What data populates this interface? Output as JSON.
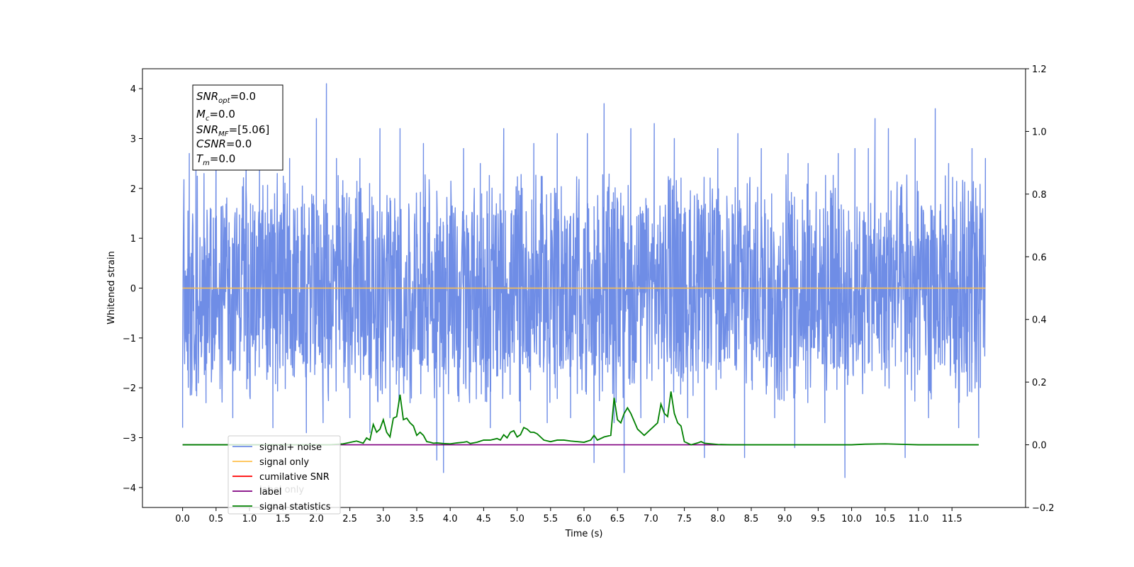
{
  "chart_data": {
    "type": "line",
    "xlabel": "Time (s)",
    "ylabel": "Whitened strain",
    "xlim": [
      -0.6,
      12.6
    ],
    "ylim": [
      -4.4,
      4.4
    ],
    "y2lim": [
      -0.2,
      1.2
    ],
    "grid": false,
    "x_ticks": [
      "0.0",
      "0.5",
      "1.0",
      "1.5",
      "2.0",
      "2.5",
      "3.0",
      "3.5",
      "4.0",
      "4.5",
      "5.0",
      "5.5",
      "6.0",
      "6.5",
      "7.0",
      "7.5",
      "8.0",
      "8.5",
      "9.0",
      "9.5",
      "10.0",
      "10.5",
      "11.0",
      "11.5"
    ],
    "y_ticks": [
      "4",
      "3",
      "2",
      "1",
      "0",
      "−1",
      "−2",
      "−3",
      "−4"
    ],
    "y2_ticks": [
      "1.2",
      "1.0",
      "0.8",
      "0.6",
      "0.4",
      "0.2",
      "0.0",
      "−0.2"
    ],
    "info_box": {
      "snr_opt": "=0.0",
      "mc": "=0.0",
      "snr_mf": "=[5.06]",
      "csnr": "=0.0",
      "tm": "=0.0"
    },
    "legend": {
      "location": "lower left",
      "entries": [
        {
          "label": "signal+ noise",
          "color": "#6f8de6"
        },
        {
          "label": "signal only",
          "color": "#ffc04d"
        },
        {
          "label": "cumilative SNR",
          "color": "#ff0000"
        },
        {
          "label": "label",
          "color": "#800080"
        },
        {
          "label": "signal statistics",
          "color": "#008000"
        }
      ],
      "hidden_text": [
        "label only"
      ]
    },
    "series": [
      {
        "name": "signal+ noise",
        "axis": "left",
        "color": "#6f8de6",
        "x_start": 0.0,
        "x_end": 12.0,
        "typical_range": [
          -1.7,
          1.7
        ],
        "spikes": [
          [
            0.0,
            -2.8
          ],
          [
            0.1,
            2.7
          ],
          [
            0.2,
            3.1
          ],
          [
            0.35,
            -2.3
          ],
          [
            0.5,
            3.0
          ],
          [
            0.75,
            -2.6
          ],
          [
            0.95,
            2.6
          ],
          [
            1.15,
            2.8
          ],
          [
            1.35,
            -2.8
          ],
          [
            1.6,
            2.6
          ],
          [
            1.85,
            -2.9
          ],
          [
            2.0,
            3.4
          ],
          [
            2.1,
            -2.7
          ],
          [
            2.15,
            4.1
          ],
          [
            2.3,
            2.6
          ],
          [
            2.5,
            -2.6
          ],
          [
            2.65,
            2.6
          ],
          [
            2.8,
            -2.9
          ],
          [
            2.95,
            3.2
          ],
          [
            3.1,
            -2.6
          ],
          [
            3.25,
            3.2
          ],
          [
            3.4,
            -2.3
          ],
          [
            3.6,
            2.9
          ],
          [
            3.8,
            -3.45
          ],
          [
            3.9,
            -3.7
          ],
          [
            4.2,
            2.8
          ],
          [
            4.45,
            2.5
          ],
          [
            4.6,
            -2.8
          ],
          [
            4.8,
            3.2
          ],
          [
            5.05,
            -2.7
          ],
          [
            5.25,
            2.9
          ],
          [
            5.45,
            -2.7
          ],
          [
            5.6,
            3.1
          ],
          [
            5.8,
            -2.6
          ],
          [
            6.05,
            3.1
          ],
          [
            6.15,
            -3.5
          ],
          [
            6.3,
            3.7
          ],
          [
            6.45,
            -2.7
          ],
          [
            6.6,
            -3.7
          ],
          [
            6.7,
            3.2
          ],
          [
            6.85,
            -2.6
          ],
          [
            7.05,
            3.3
          ],
          [
            7.2,
            -2.7
          ],
          [
            7.35,
            3.0
          ],
          [
            7.55,
            -2.6
          ],
          [
            7.8,
            -3.4
          ],
          [
            8.0,
            2.8
          ],
          [
            8.3,
            3.1
          ],
          [
            8.4,
            -3.4
          ],
          [
            8.65,
            2.8
          ],
          [
            8.85,
            -2.6
          ],
          [
            9.05,
            2.7
          ],
          [
            9.15,
            -3.2
          ],
          [
            9.35,
            2.5
          ],
          [
            9.6,
            -2.7
          ],
          [
            9.8,
            2.7
          ],
          [
            9.9,
            -3.8
          ],
          [
            10.05,
            2.8
          ],
          [
            10.25,
            2.8
          ],
          [
            10.35,
            3.4
          ],
          [
            10.55,
            3.2
          ],
          [
            10.8,
            -3.4
          ],
          [
            10.95,
            3.0
          ],
          [
            11.15,
            -2.6
          ],
          [
            11.25,
            3.6
          ],
          [
            11.45,
            2.5
          ],
          [
            11.6,
            -2.8
          ],
          [
            11.8,
            2.8
          ],
          [
            11.9,
            -3.0
          ],
          [
            12.0,
            2.6
          ]
        ]
      },
      {
        "name": "signal only",
        "axis": "left",
        "color": "#ffc04d",
        "x": [
          0.0,
          12.0
        ],
        "y": [
          0.0,
          0.0
        ]
      },
      {
        "name": "label",
        "axis": "right",
        "color": "#800080",
        "x": [
          0.0,
          8.4
        ],
        "y": [
          0.0,
          0.0
        ]
      },
      {
        "name": "signal statistics",
        "axis": "right",
        "color": "#008000",
        "x": [
          0.0,
          2.2,
          2.4,
          2.6,
          2.7,
          2.75,
          2.8,
          2.85,
          2.9,
          2.95,
          3.0,
          3.05,
          3.1,
          3.15,
          3.2,
          3.25,
          3.3,
          3.35,
          3.4,
          3.45,
          3.5,
          3.55,
          3.6,
          3.65,
          3.7,
          3.75,
          3.8,
          3.9,
          4.0,
          4.1,
          4.2,
          4.25,
          4.3,
          4.35,
          4.4,
          4.5,
          4.6,
          4.7,
          4.75,
          4.8,
          4.85,
          4.9,
          4.95,
          5.0,
          5.05,
          5.1,
          5.15,
          5.2,
          5.25,
          5.3,
          5.4,
          5.5,
          5.6,
          5.7,
          5.8,
          5.9,
          6.0,
          6.1,
          6.15,
          6.2,
          6.3,
          6.4,
          6.45,
          6.5,
          6.55,
          6.6,
          6.65,
          6.7,
          6.75,
          6.8,
          6.9,
          7.0,
          7.05,
          7.1,
          7.15,
          7.2,
          7.25,
          7.3,
          7.35,
          7.4,
          7.45,
          7.5,
          7.6,
          7.7,
          7.75,
          7.8,
          7.9,
          8.0,
          8.2,
          8.5,
          9.0,
          10.0,
          10.2,
          10.5,
          11.0,
          11.5,
          11.9
        ],
        "y": [
          0.0,
          0.0,
          0.003,
          0.012,
          0.005,
          0.022,
          0.015,
          0.065,
          0.04,
          0.05,
          0.08,
          0.04,
          0.025,
          0.085,
          0.09,
          0.16,
          0.08,
          0.085,
          0.07,
          0.06,
          0.03,
          0.04,
          0.03,
          0.01,
          0.008,
          0.005,
          0.006,
          0.004,
          0.003,
          0.006,
          0.008,
          0.01,
          0.004,
          0.006,
          0.008,
          0.015,
          0.015,
          0.02,
          0.015,
          0.032,
          0.022,
          0.04,
          0.045,
          0.025,
          0.032,
          0.055,
          0.05,
          0.04,
          0.04,
          0.035,
          0.015,
          0.01,
          0.015,
          0.015,
          0.012,
          0.01,
          0.008,
          0.015,
          0.03,
          0.015,
          0.025,
          0.03,
          0.15,
          0.08,
          0.07,
          0.1,
          0.118,
          0.1,
          0.075,
          0.05,
          0.03,
          0.05,
          0.06,
          0.07,
          0.13,
          0.1,
          0.09,
          0.17,
          0.1,
          0.07,
          0.06,
          0.01,
          0.0,
          0.006,
          0.01,
          0.005,
          0.003,
          0.001,
          0.0,
          0.0,
          0.0,
          0.0,
          0.002,
          0.003,
          0.0,
          0.0,
          0.0
        ]
      }
    ]
  }
}
